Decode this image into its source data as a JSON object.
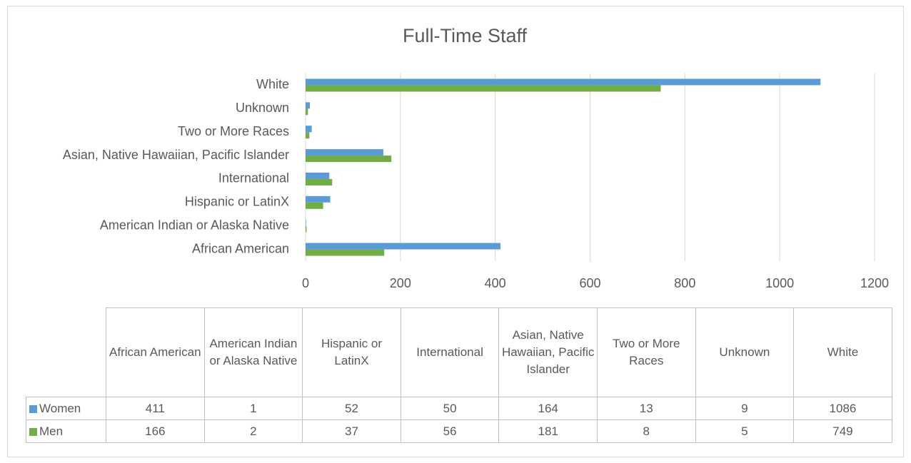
{
  "chart_data": {
    "type": "barh",
    "title": "Full-Time Staff",
    "categories": [
      "African American",
      "American Indian or Alaska Native",
      "Hispanic or LatinX",
      "International",
      "Asian, Native Hawaiian, Pacific Islander",
      "Two or More Races",
      "Unknown",
      "White"
    ],
    "series": [
      {
        "name": "Women",
        "color": "#5b9bd5",
        "values": [
          411,
          1,
          52,
          50,
          164,
          13,
          9,
          1086
        ]
      },
      {
        "name": "Men",
        "color": "#70ad47",
        "values": [
          166,
          2,
          37,
          56,
          181,
          8,
          5,
          749
        ]
      }
    ],
    "xlim": [
      0,
      1200
    ],
    "xticks": [
      0,
      200,
      400,
      600,
      800,
      1000,
      1200
    ],
    "grid": true
  }
}
